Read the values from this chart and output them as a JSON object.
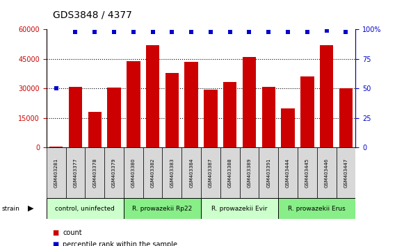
{
  "title": "GDS3848 / 4377",
  "samples": [
    "GSM403281",
    "GSM403377",
    "GSM403378",
    "GSM403379",
    "GSM403380",
    "GSM403382",
    "GSM403383",
    "GSM403384",
    "GSM403387",
    "GSM403388",
    "GSM403389",
    "GSM403391",
    "GSM403444",
    "GSM403445",
    "GSM403446",
    "GSM403447"
  ],
  "counts": [
    400,
    31000,
    18000,
    30500,
    44000,
    52000,
    38000,
    43500,
    29500,
    33500,
    46000,
    31000,
    20000,
    36000,
    52000,
    30000
  ],
  "percentile_ranks": [
    50,
    98,
    98,
    98,
    98,
    98,
    98,
    98,
    98,
    98,
    98,
    98,
    98,
    98,
    99,
    98
  ],
  "groups": [
    {
      "label": "control, uninfected",
      "start": 0,
      "end": 4,
      "color": "#ccffcc"
    },
    {
      "label": "R. prowazekii Rp22",
      "start": 4,
      "end": 8,
      "color": "#88ee88"
    },
    {
      "label": "R. prowazekii Evir",
      "start": 8,
      "end": 12,
      "color": "#ccffcc"
    },
    {
      "label": "R. prowazekii Erus",
      "start": 12,
      "end": 16,
      "color": "#88ee88"
    }
  ],
  "bar_color": "#cc0000",
  "dot_color": "#0000cc",
  "ylim_left": [
    0,
    60000
  ],
  "ylim_right": [
    0,
    100
  ],
  "yticks_left": [
    0,
    15000,
    30000,
    45000,
    60000
  ],
  "yticks_right": [
    0,
    25,
    50,
    75,
    100
  ],
  "background_color": "#ffffff"
}
